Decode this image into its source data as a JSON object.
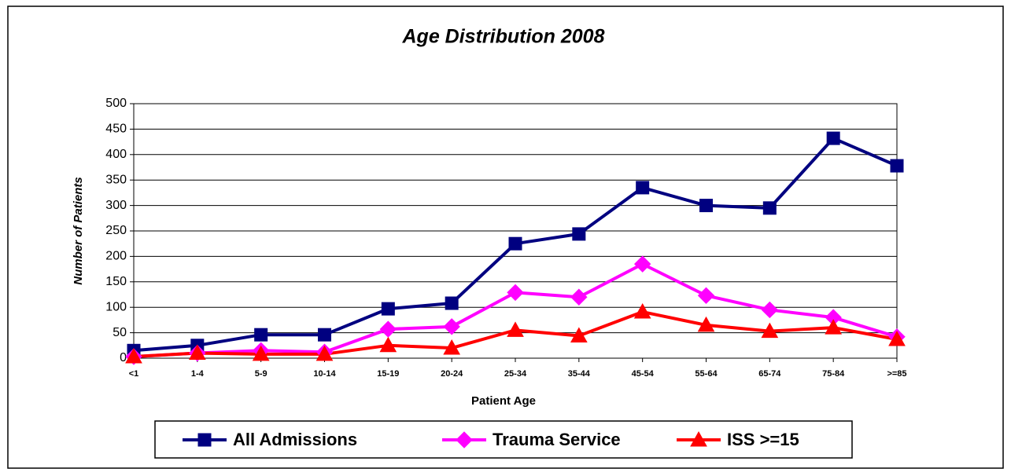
{
  "chart_data": {
    "type": "line",
    "title": "Age Distribution 2008",
    "xlabel": "Patient Age",
    "ylabel": "Number of Patients",
    "categories": [
      "<1",
      "1-4",
      "5-9",
      "10-14",
      "15-19",
      "20-24",
      "25-34",
      "35-44",
      "45-54",
      "55-64",
      "65-74",
      "75-84",
      ">=85"
    ],
    "series": [
      {
        "name": "All Admissions",
        "color": "#000080",
        "marker": "square",
        "values": [
          15,
          25,
          46,
          46,
          97,
          108,
          225,
          244,
          335,
          300,
          295,
          432,
          378
        ]
      },
      {
        "name": "Trauma Service",
        "color": "#ff00ff",
        "marker": "diamond",
        "values": [
          3,
          10,
          15,
          12,
          57,
          62,
          129,
          120,
          185,
          123,
          95,
          80,
          42
        ]
      },
      {
        "name": "ISS >=15",
        "color": "#ff0000",
        "marker": "triangle",
        "values": [
          3,
          10,
          8,
          8,
          25,
          20,
          55,
          44,
          91,
          65,
          53,
          60,
          37
        ]
      }
    ],
    "ylim": [
      0,
      500
    ],
    "yticks": [
      0,
      50,
      100,
      150,
      200,
      250,
      300,
      350,
      400,
      450,
      500
    ],
    "grid": true,
    "legend": "bottom"
  }
}
